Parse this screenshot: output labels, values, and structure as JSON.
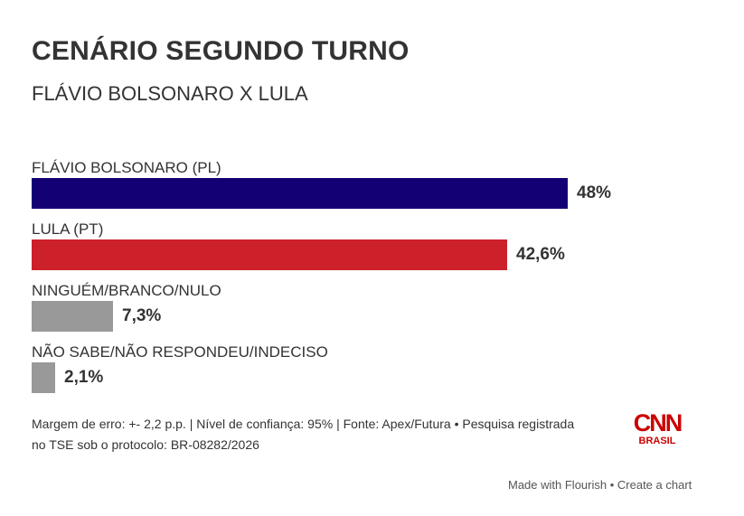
{
  "header": {
    "title": "CENÁRIO SEGUNDO TURNO",
    "subtitle": "FLÁVIO BOLSONARO X LULA"
  },
  "rows": [
    {
      "label": "FLÁVIO BOLSONARO (PL)",
      "value_label": "48%",
      "value": 48,
      "color": "#140075"
    },
    {
      "label": "LULA (PT)",
      "value_label": "42,6%",
      "value": 42.6,
      "color": "#cc212b"
    },
    {
      "label": "NINGUÉM/BRANCO/NULO",
      "value_label": "7,3%",
      "value": 7.3,
      "color": "#999999"
    },
    {
      "label": "NÃO SABE/NÃO RESPONDEU/INDECISO",
      "value_label": "2,1%",
      "value": 2.1,
      "color": "#999999"
    }
  ],
  "footer": {
    "note_line1": "Margem de erro: +- 2,2 p.p. | Nível de confiança: 95% | Fonte: Apex/Futura • Pesquisa registrada",
    "note_line2": "no TSE sob o protocolo: BR-08282/2026",
    "logo_text": "CNN",
    "logo_subtext": "BRASIL",
    "logo_color": "#cc0000"
  },
  "credit": {
    "made_with": "Made with Flourish",
    "separator": " • ",
    "create": "Create a chart"
  },
  "chart_data": {
    "type": "bar",
    "orientation": "horizontal",
    "title": "CENÁRIO SEGUNDO TURNO",
    "subtitle": "FLÁVIO BOLSONARO X LULA",
    "categories": [
      "FLÁVIO BOLSONARO (PL)",
      "LULA (PT)",
      "NINGUÉM/BRANCO/NULO",
      "NÃO SABE/NÃO RESPONDEU/INDECISO"
    ],
    "values": [
      48,
      42.6,
      7.3,
      2.1
    ],
    "value_labels": [
      "48%",
      "42,6%",
      "7,3%",
      "2,1%"
    ],
    "colors": [
      "#140075",
      "#cc212b",
      "#999999",
      "#999999"
    ],
    "xlabel": "",
    "ylabel": "",
    "unit": "%",
    "grid": false,
    "legend": null,
    "annotations": [
      "Margem de erro: +- 2,2 p.p. | Nível de confiança: 95% | Fonte: Apex/Futura • Pesquisa registrada no TSE sob o protocolo: BR-08282/2026"
    ]
  }
}
